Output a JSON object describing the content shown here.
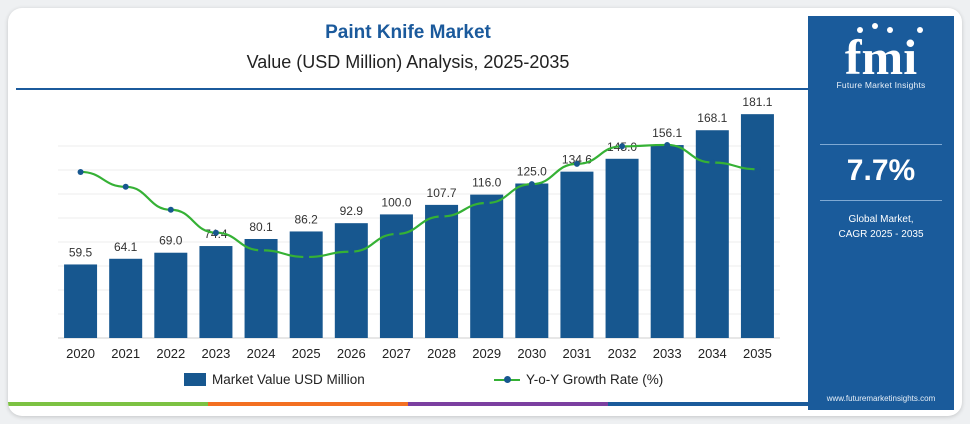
{
  "header": {
    "title": "Paint Knife Market",
    "subtitle": "Value (USD Million) Analysis, 2025-2035"
  },
  "legend": {
    "bar_label": "Market Value USD Million",
    "line_label": "Y-o-Y Growth Rate (%)"
  },
  "side_panel": {
    "logo_text": "fmi",
    "logo_caption": "Future Market Insights",
    "cagr_value": "7.7%",
    "cagr_line1": "Global Market,",
    "cagr_line2": "CAGR 2025 - 2035",
    "website": "www.futuremarketinsights.com"
  },
  "colors": {
    "bar": "#17578f",
    "line": "#35b135",
    "marker": "#17578f",
    "title": "#1b5a9c",
    "panel": "#1a5b9b",
    "strip": [
      "#7cc242",
      "#f36f21",
      "#7b3fa0",
      "#1a5b9b"
    ]
  },
  "chart_data": {
    "type": "bar",
    "categories": [
      "2020",
      "2021",
      "2022",
      "2023",
      "2024",
      "2025",
      "2026",
      "2027",
      "2028",
      "2029",
      "2030",
      "2031",
      "2032",
      "2033",
      "2034",
      "2035"
    ],
    "series": [
      {
        "name": "Market Value USD Million",
        "type": "bar",
        "values": [
          59.5,
          64.1,
          69.0,
          74.4,
          80.1,
          86.2,
          92.9,
          100.0,
          107.7,
          116.0,
          125.0,
          134.6,
          145.0,
          156.1,
          168.1,
          181.1
        ],
        "labels": [
          "59.5",
          "64.1",
          "69.0",
          "74.4",
          "80.1",
          "86.2",
          "92.9",
          "100.0",
          "107.7",
          "116.0",
          "125.0",
          "134.6",
          "145.0",
          "156.1",
          "168.1",
          "181.1"
        ]
      },
      {
        "name": "Y-o-Y Growth Rate (%)",
        "type": "line",
        "values": [
          7.73,
          7.62,
          7.45,
          7.28,
          7.15,
          7.1,
          7.14,
          7.27,
          7.4,
          7.5,
          7.64,
          7.79,
          7.92,
          7.93,
          7.8,
          7.75
        ]
      }
    ],
    "ylim": [
      0,
      200
    ],
    "line_ylim": [
      6.5,
      8.1
    ],
    "grid": true,
    "legend_position": "bottom"
  }
}
